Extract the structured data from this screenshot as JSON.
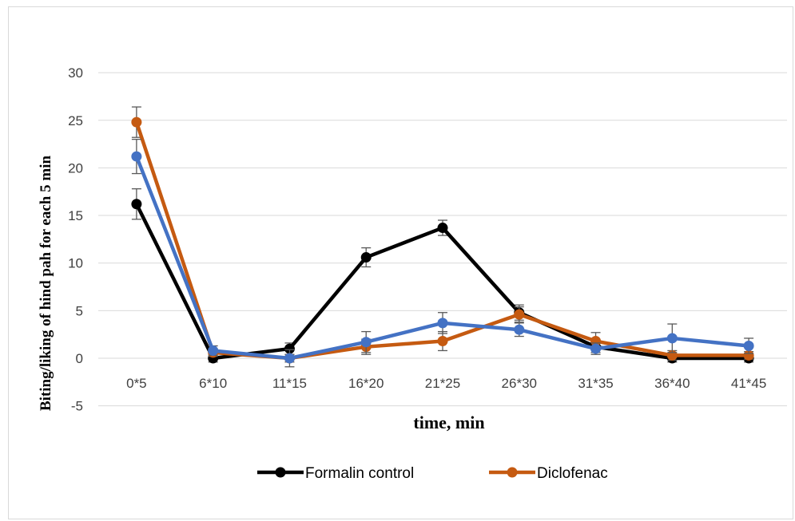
{
  "chart_data": {
    "type": "line",
    "title": "",
    "xlabel": "time, min",
    "ylabel": "Biting/liking of hind pah for each 5 min",
    "ylim": [
      -5,
      30
    ],
    "yticks": [
      -5,
      0,
      5,
      10,
      15,
      20,
      25,
      30
    ],
    "grid": true,
    "legend_position": "bottom",
    "categories": [
      "0*5",
      "6*10",
      "11*15",
      "16*20",
      "21*25",
      "26*30",
      "31*35",
      "36*40",
      "41*45"
    ],
    "series": [
      {
        "name": "Formalin control",
        "color": "#000000",
        "values": [
          16.2,
          0.0,
          1.0,
          10.6,
          13.7,
          4.8,
          1.2,
          0.0,
          0.0
        ],
        "errors": [
          1.6,
          0.4,
          0.6,
          1.0,
          0.8,
          0.8,
          0.6,
          0.4,
          0.4
        ],
        "in_legend": true
      },
      {
        "name": "Diclofenac",
        "color": "#C55A11",
        "values": [
          24.8,
          0.6,
          0.0,
          1.2,
          1.8,
          4.6,
          1.8,
          0.3,
          0.3
        ],
        "errors": [
          1.6,
          0.4,
          0.4,
          0.8,
          1.0,
          0.8,
          0.9,
          0.5,
          0.4
        ],
        "in_legend": true
      },
      {
        "color": "#4472C4",
        "values": [
          21.2,
          0.8,
          0.0,
          1.7,
          3.7,
          3.0,
          1.0,
          2.1,
          1.3
        ],
        "errors": [
          1.8,
          0.5,
          0.9,
          1.1,
          1.1,
          0.7,
          0.6,
          1.5,
          0.8
        ],
        "in_legend": false
      }
    ]
  }
}
